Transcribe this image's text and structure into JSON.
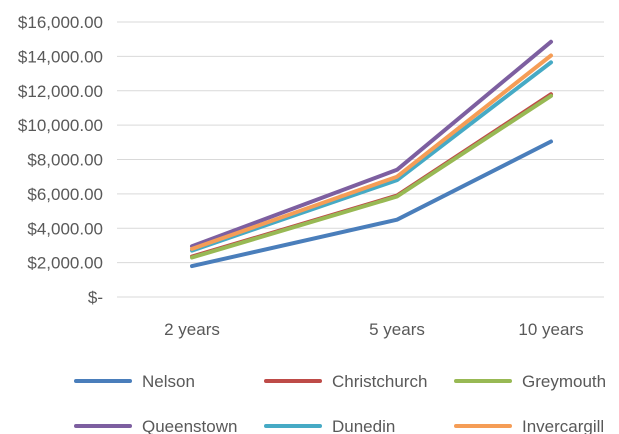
{
  "chart_data": {
    "type": "line",
    "categories": [
      "2 years",
      "5 years",
      "10 years"
    ],
    "ylim": [
      0,
      16000
    ],
    "yticks": [
      {
        "value": 0,
        "label": "$-"
      },
      {
        "value": 2000,
        "label": "$2,000.00"
      },
      {
        "value": 4000,
        "label": "$4,000.00"
      },
      {
        "value": 6000,
        "label": "$6,000.00"
      },
      {
        "value": 8000,
        "label": "$8,000.00"
      },
      {
        "value": 10000,
        "label": "$10,000.00"
      },
      {
        "value": 12000,
        "label": "$12,000.00"
      },
      {
        "value": 14000,
        "label": "$14,000.00"
      },
      {
        "value": 16000,
        "label": "$16,000.00"
      }
    ],
    "grid": true,
    "legend_position": "bottom",
    "series": [
      {
        "name": "Nelson",
        "color": "#4a7ebb",
        "values": [
          1800,
          4500,
          9050
        ]
      },
      {
        "name": "Christchurch",
        "color": "#be4b48",
        "values": [
          2350,
          5900,
          11800
        ]
      },
      {
        "name": "Greymouth",
        "color": "#98b954",
        "values": [
          2300,
          5850,
          11700
        ]
      },
      {
        "name": "Queenstown",
        "color": "#7d5fa0",
        "values": [
          2950,
          7400,
          14850
        ]
      },
      {
        "name": "Dunedin",
        "color": "#46aac5",
        "values": [
          2700,
          6800,
          13650
        ]
      },
      {
        "name": "Invercargill",
        "color": "#f59d56",
        "values": [
          2800,
          7000,
          14050
        ]
      }
    ]
  }
}
